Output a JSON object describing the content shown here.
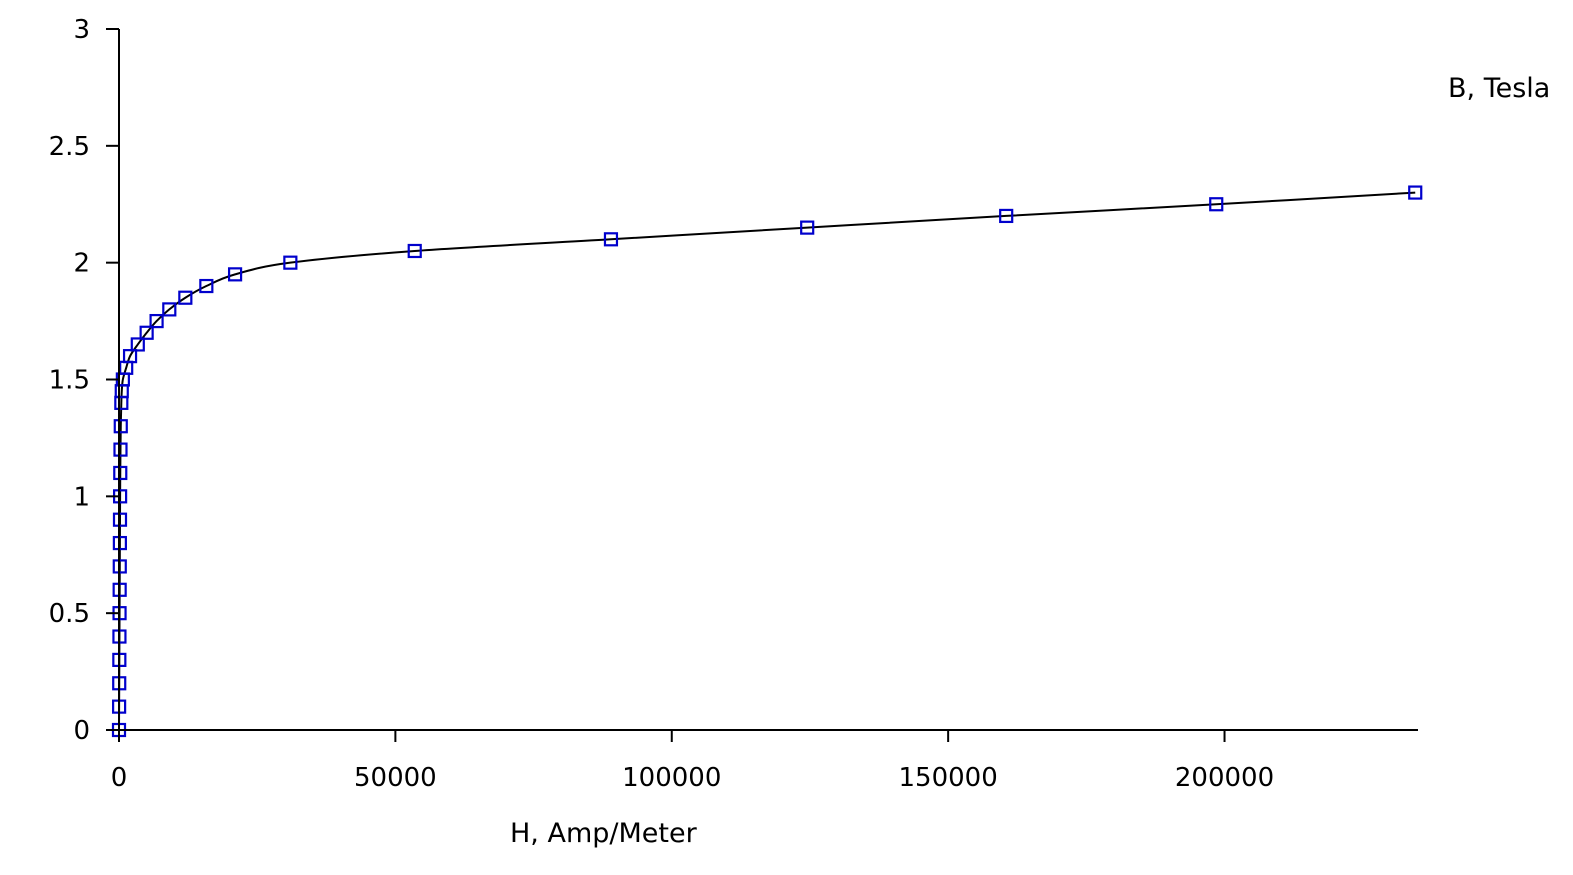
{
  "chart_data": {
    "type": "scatter",
    "xlabel": "H, Amp/Meter",
    "ylabel": "B, Tesla",
    "xlim": [
      0,
      235000
    ],
    "ylim": [
      0,
      3
    ],
    "x_ticks": [
      0,
      50000,
      100000,
      150000,
      200000
    ],
    "x_tick_labels": [
      "0",
      "50000",
      "100000",
      "150000",
      "200000"
    ],
    "y_ticks": [
      0,
      0.5,
      1,
      1.5,
      2,
      2.5,
      3
    ],
    "y_tick_labels": [
      "0",
      "0.5",
      "1",
      "1.5",
      "2",
      "2.5",
      "3"
    ],
    "grid": false,
    "legend": "none",
    "line_color": "#000000",
    "marker_color": "#0000cc",
    "marker": "open-square",
    "series": [
      {
        "points": [
          [
            0,
            0
          ],
          [
            20,
            0.1
          ],
          [
            40,
            0.2
          ],
          [
            60,
            0.3
          ],
          [
            80,
            0.4
          ],
          [
            100,
            0.5
          ],
          [
            120,
            0.6
          ],
          [
            140,
            0.7
          ],
          [
            160,
            0.8
          ],
          [
            180,
            0.9
          ],
          [
            200,
            1.0
          ],
          [
            230,
            1.1
          ],
          [
            270,
            1.2
          ],
          [
            320,
            1.3
          ],
          [
            420,
            1.4
          ],
          [
            500,
            1.45
          ],
          [
            700,
            1.5
          ],
          [
            1300,
            1.55
          ],
          [
            2000,
            1.6
          ],
          [
            3400,
            1.65
          ],
          [
            5000,
            1.7
          ],
          [
            6800,
            1.75
          ],
          [
            9100,
            1.8
          ],
          [
            12000,
            1.85
          ],
          [
            15800,
            1.9
          ],
          [
            21000,
            1.95
          ],
          [
            31000,
            2.0
          ],
          [
            53500,
            2.05
          ],
          [
            89000,
            2.1
          ],
          [
            124500,
            2.15
          ],
          [
            160500,
            2.2
          ],
          [
            198500,
            2.25
          ],
          [
            234500,
            2.3
          ]
        ]
      }
    ]
  }
}
